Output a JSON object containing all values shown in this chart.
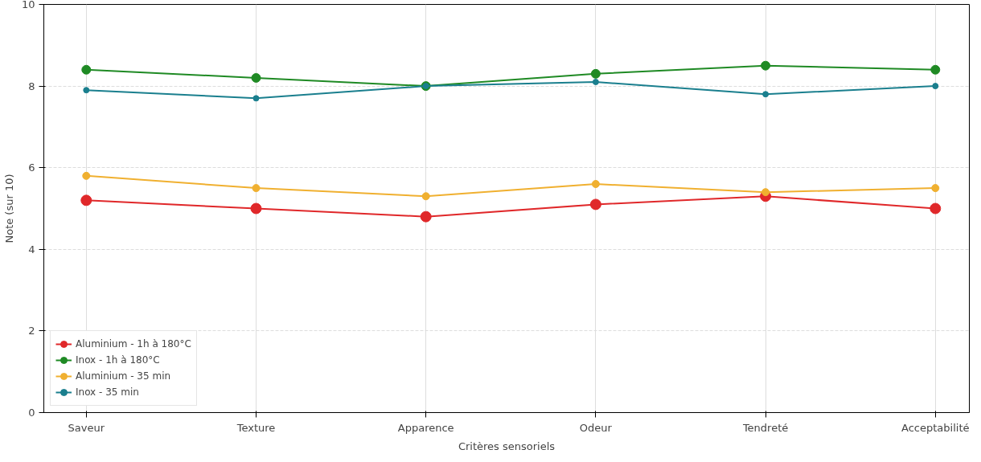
{
  "chart_data": {
    "type": "line",
    "xlabel": "Critères sensoriels",
    "ylabel": "Note (sur 10)",
    "categories": [
      "Saveur",
      "Texture",
      "Apparence",
      "Odeur",
      "Tendreté",
      "Acceptabilité"
    ],
    "series": [
      {
        "name": "Aluminium - 1h à 180°C",
        "color": "#e0282a",
        "values": [
          5.2,
          5.0,
          4.8,
          5.1,
          5.3,
          5.0
        ]
      },
      {
        "name": "Inox - 1h à 180°C",
        "color": "#1f8a24",
        "values": [
          8.4,
          8.2,
          8.0,
          8.3,
          8.5,
          8.4
        ]
      },
      {
        "name": "Aluminium - 35 min",
        "color": "#f0b030",
        "values": [
          5.8,
          5.5,
          5.3,
          5.6,
          5.4,
          5.5
        ]
      },
      {
        "name": "Inox - 35 min",
        "color": "#1a7f8e",
        "values": [
          7.9,
          7.7,
          8.0,
          8.1,
          7.8,
          8.0
        ]
      }
    ],
    "ylim": [
      0,
      10
    ],
    "yticks": [
      0,
      2,
      4,
      6,
      8,
      10
    ],
    "grid": true,
    "legend": "bottom left",
    "marker": "circle",
    "line_style": "solid"
  }
}
